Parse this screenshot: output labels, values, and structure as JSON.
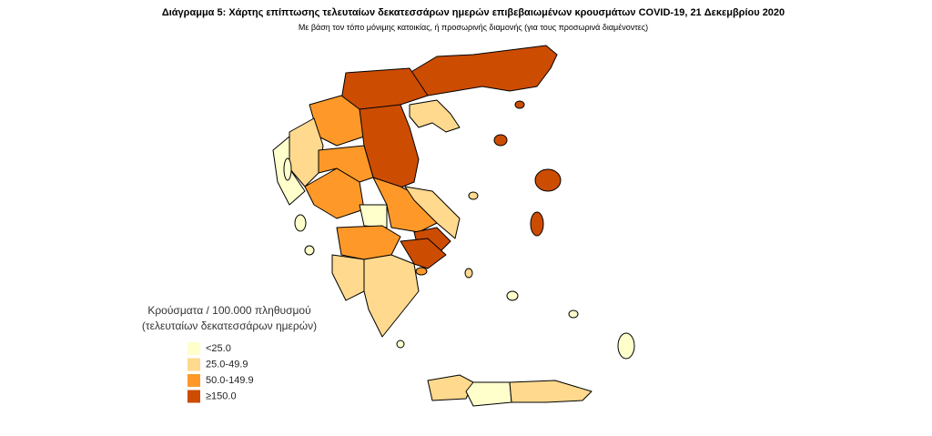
{
  "header": {
    "title": "Διάγραμμα 5: Χάρτης επίπτωσης τελευταίων δεκατεσσάρων ημερών επιβεβαιωμένων κρουσμάτων COVID-19, 21 Δεκεμβρίου 2020",
    "subtitle": "Με βάση τον τόπο μόνιμης κατοικίας, ή προσωρινής διαμονής (για τους προσωρινά διαμένοντες)"
  },
  "legend": {
    "title": [
      "Κρούσματα / 100.000 πληθυσμού",
      "(τελευταίων δεκατεσσάρων ημερών)"
    ],
    "items": [
      {
        "label": "<25.0",
        "color": "#ffffcc"
      },
      {
        "label": "25.0-49.9",
        "color": "#fed98e"
      },
      {
        "label": "50.0-149.9",
        "color": "#fe9929"
      },
      {
        "label": "≥150.0",
        "color": "#cc4c02"
      }
    ]
  }
}
